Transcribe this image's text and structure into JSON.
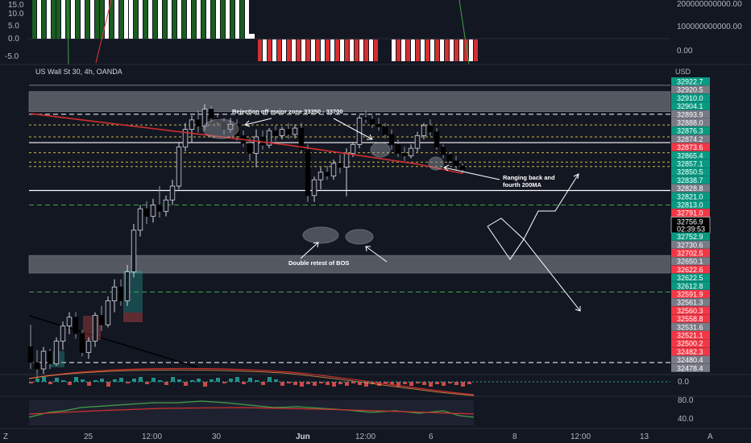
{
  "header": {
    "symbol": "US Wall St 30, 4h, OANDA",
    "currency": "USD"
  },
  "top_indicator": {
    "left_ticks": [
      "15.0",
      "10.0",
      "5.0",
      "0.0",
      "-5.0"
    ],
    "right_ticks": [
      "200000000000.00",
      "100000000000.00",
      "0.00"
    ]
  },
  "bottom_indicators": {
    "macd_tick": "0.0",
    "rsi_ticks": [
      "80.0",
      "40.0"
    ]
  },
  "annotations": {
    "rejection": "Rejection off major zone 33350 - 33700",
    "retest": "Double retest of BOS",
    "ranging_line1": "Ranging back and",
    "ranging_line2": "fourth 200MA"
  },
  "x_axis": {
    "ticks": [
      "Z",
      "25",
      "12:00",
      "30",
      "Jun",
      "12:00",
      "6",
      "8",
      "12:00",
      "13",
      "A"
    ]
  },
  "colors": {
    "background": "#131722",
    "up": "#26a69a",
    "down": "#ef5350",
    "ma200": "#d32f2f",
    "green_label": "#089981",
    "red_label": "#f23645",
    "gray_label": "#787b86"
  },
  "chart_data": {
    "type": "candlestick",
    "title": "US Wall St 30, 4h, OANDA",
    "ylabel": "USD",
    "ylim": [
      32470,
      32930
    ],
    "price_labels": [
      {
        "value": "32922.7",
        "color": "green"
      },
      {
        "value": "32920.5",
        "color": "gray"
      },
      {
        "value": "32910.0",
        "color": "green"
      },
      {
        "value": "32904.1",
        "color": "green"
      },
      {
        "value": "32893.9",
        "color": "gray"
      },
      {
        "value": "32888.0",
        "color": "gray"
      },
      {
        "value": "32876.3",
        "color": "green"
      },
      {
        "value": "32874.2",
        "color": "gray"
      },
      {
        "value": "32873.6",
        "color": "red"
      },
      {
        "value": "32865.4",
        "color": "green"
      },
      {
        "value": "32857.1",
        "color": "green"
      },
      {
        "value": "32850.5",
        "color": "green"
      },
      {
        "value": "32838.7",
        "color": "green"
      },
      {
        "value": "32828.8",
        "color": "gray"
      },
      {
        "value": "32821.0",
        "color": "green"
      },
      {
        "value": "32813.0",
        "color": "green"
      },
      {
        "value": "32791.0",
        "color": "red"
      },
      {
        "value": "32756.9",
        "color": "current",
        "sub": "02:39:53"
      },
      {
        "value": "32752.9",
        "color": "green"
      },
      {
        "value": "32730.6",
        "color": "gray"
      },
      {
        "value": "32702.5",
        "color": "red"
      },
      {
        "value": "32650.1",
        "color": "gray"
      },
      {
        "value": "32622.6",
        "color": "red"
      },
      {
        "value": "32622.5",
        "color": "green"
      },
      {
        "value": "32612.8",
        "color": "green"
      },
      {
        "value": "32591.9",
        "color": "red"
      },
      {
        "value": "32561.3",
        "color": "gray"
      },
      {
        "value": "32560.3",
        "color": "red"
      },
      {
        "value": "32558.8",
        "color": "red"
      },
      {
        "value": "32531.6",
        "color": "gray"
      },
      {
        "value": "32521.1",
        "color": "red"
      },
      {
        "value": "32500.2",
        "color": "red"
      },
      {
        "value": "32482.3",
        "color": "red"
      },
      {
        "value": "32480.4",
        "color": "gray"
      },
      {
        "value": "32478.4",
        "color": "gray"
      }
    ],
    "candles": [
      {
        "o": 32505,
        "h": 32540,
        "l": 32470,
        "c": 32480
      },
      {
        "o": 32480,
        "h": 32500,
        "l": 32455,
        "c": 32470
      },
      {
        "o": 32470,
        "h": 32505,
        "l": 32462,
        "c": 32498
      },
      {
        "o": 32498,
        "h": 32502,
        "l": 32470,
        "c": 32478
      },
      {
        "o": 32478,
        "h": 32520,
        "l": 32475,
        "c": 32514
      },
      {
        "o": 32514,
        "h": 32545,
        "l": 32500,
        "c": 32538
      },
      {
        "o": 32538,
        "h": 32560,
        "l": 32525,
        "c": 32552
      },
      {
        "o": 32552,
        "h": 32560,
        "l": 32518,
        "c": 32526
      },
      {
        "o": 32526,
        "h": 32532,
        "l": 32490,
        "c": 32496
      },
      {
        "o": 32496,
        "h": 32520,
        "l": 32486,
        "c": 32514
      },
      {
        "o": 32514,
        "h": 32560,
        "l": 32505,
        "c": 32555
      },
      {
        "o": 32555,
        "h": 32570,
        "l": 32530,
        "c": 32540
      },
      {
        "o": 32540,
        "h": 32585,
        "l": 32536,
        "c": 32578
      },
      {
        "o": 32578,
        "h": 32612,
        "l": 32560,
        "c": 32600
      },
      {
        "o": 32600,
        "h": 32612,
        "l": 32570,
        "c": 32578
      },
      {
        "o": 32578,
        "h": 32635,
        "l": 32570,
        "c": 32624
      },
      {
        "o": 32624,
        "h": 32700,
        "l": 32615,
        "c": 32690
      },
      {
        "o": 32690,
        "h": 32730,
        "l": 32680,
        "c": 32724
      },
      {
        "o": 32724,
        "h": 32736,
        "l": 32700,
        "c": 32712
      },
      {
        "o": 32712,
        "h": 32740,
        "l": 32702,
        "c": 32730
      },
      {
        "o": 32730,
        "h": 32760,
        "l": 32710,
        "c": 32720
      },
      {
        "o": 32720,
        "h": 32745,
        "l": 32712,
        "c": 32738
      },
      {
        "o": 32738,
        "h": 32770,
        "l": 32730,
        "c": 32760
      },
      {
        "o": 32760,
        "h": 32830,
        "l": 32755,
        "c": 32822
      },
      {
        "o": 32822,
        "h": 32860,
        "l": 32815,
        "c": 32850
      },
      {
        "o": 32850,
        "h": 32872,
        "l": 32830,
        "c": 32865
      },
      {
        "o": 32865,
        "h": 32880,
        "l": 32845,
        "c": 32855
      },
      {
        "o": 32855,
        "h": 32890,
        "l": 32848,
        "c": 32882
      },
      {
        "o": 32882,
        "h": 32888,
        "l": 32862,
        "c": 32868
      },
      {
        "o": 32868,
        "h": 32874,
        "l": 32858,
        "c": 32862
      },
      {
        "o": 32862,
        "h": 32868,
        "l": 32842,
        "c": 32850
      },
      {
        "o": 32850,
        "h": 32868,
        "l": 32845,
        "c": 32858
      },
      {
        "o": 32858,
        "h": 32866,
        "l": 32832,
        "c": 32840
      },
      {
        "o": 32840,
        "h": 32848,
        "l": 32822,
        "c": 32828
      },
      {
        "o": 32828,
        "h": 32836,
        "l": 32800,
        "c": 32812
      },
      {
        "o": 32812,
        "h": 32850,
        "l": 32790,
        "c": 32838
      },
      {
        "o": 32838,
        "h": 32848,
        "l": 32818,
        "c": 32825
      },
      {
        "o": 32825,
        "h": 32852,
        "l": 32820,
        "c": 32848
      },
      {
        "o": 32848,
        "h": 32856,
        "l": 32832,
        "c": 32840
      },
      {
        "o": 32840,
        "h": 32854,
        "l": 32834,
        "c": 32850
      },
      {
        "o": 32850,
        "h": 32860,
        "l": 32835,
        "c": 32842
      },
      {
        "o": 32842,
        "h": 32858,
        "l": 32836,
        "c": 32852
      },
      {
        "o": 32852,
        "h": 32860,
        "l": 32812,
        "c": 32818
      },
      {
        "o": 32818,
        "h": 32826,
        "l": 32735,
        "c": 32745
      },
      {
        "o": 32745,
        "h": 32775,
        "l": 32735,
        "c": 32770
      },
      {
        "o": 32770,
        "h": 32790,
        "l": 32755,
        "c": 32782
      },
      {
        "o": 32782,
        "h": 32792,
        "l": 32770,
        "c": 32776
      },
      {
        "o": 32776,
        "h": 32802,
        "l": 32770,
        "c": 32796
      },
      {
        "o": 32796,
        "h": 32810,
        "l": 32780,
        "c": 32790
      },
      {
        "o": 32790,
        "h": 32820,
        "l": 32744,
        "c": 32812
      },
      {
        "o": 32812,
        "h": 32830,
        "l": 32806,
        "c": 32826
      },
      {
        "o": 32826,
        "h": 32872,
        "l": 32820,
        "c": 32868
      },
      {
        "o": 32868,
        "h": 32880,
        "l": 32860,
        "c": 32866
      },
      {
        "o": 32866,
        "h": 32872,
        "l": 32852,
        "c": 32858
      },
      {
        "o": 32858,
        "h": 32868,
        "l": 32848,
        "c": 32854
      },
      {
        "o": 32854,
        "h": 32860,
        "l": 32836,
        "c": 32842
      },
      {
        "o": 32842,
        "h": 32850,
        "l": 32818,
        "c": 32826
      },
      {
        "o": 32826,
        "h": 32834,
        "l": 32806,
        "c": 32812
      },
      {
        "o": 32812,
        "h": 32822,
        "l": 32800,
        "c": 32808
      },
      {
        "o": 32808,
        "h": 32826,
        "l": 32804,
        "c": 32820
      },
      {
        "o": 32820,
        "h": 32846,
        "l": 32814,
        "c": 32840
      },
      {
        "o": 32840,
        "h": 32860,
        "l": 32834,
        "c": 32856
      },
      {
        "o": 32856,
        "h": 32866,
        "l": 32840,
        "c": 32846
      },
      {
        "o": 32846,
        "h": 32852,
        "l": 32818,
        "c": 32822
      },
      {
        "o": 32822,
        "h": 32826,
        "l": 32804,
        "c": 32810
      },
      {
        "o": 32810,
        "h": 32814,
        "l": 32796,
        "c": 32800
      },
      {
        "o": 32800,
        "h": 32808,
        "l": 32786,
        "c": 32792
      },
      {
        "o": 32792,
        "h": 32796,
        "l": 32780,
        "c": 32786
      }
    ],
    "ma200": [
      [
        0,
        32875
      ],
      [
        20,
        32850
      ],
      [
        40,
        32825
      ],
      [
        60,
        32795
      ],
      [
        67,
        32780
      ]
    ],
    "zones": [
      {
        "top": 32910,
        "bottom": 32878
      },
      {
        "top": 32650,
        "bottom": 32622
      }
    ],
    "horizontal_levels": [
      {
        "value": 32920,
        "style": "solid-gray"
      },
      {
        "value": 32874,
        "style": "dashed-white"
      },
      {
        "value": 32857,
        "style": "dashed-yellow"
      },
      {
        "value": 32838,
        "style": "dashed-yellow"
      },
      {
        "value": 32829,
        "style": "solid-white"
      },
      {
        "value": 32813,
        "style": "dashed-yellow"
      },
      {
        "value": 32798,
        "style": "dashed-yellow"
      },
      {
        "value": 32791,
        "style": "dashed-yellow"
      },
      {
        "value": 32753,
        "style": "solid-white"
      },
      {
        "value": 32730,
        "style": "dashed-green"
      },
      {
        "value": 32592,
        "style": "dashed-green"
      },
      {
        "value": 32480,
        "style": "dashed-white"
      }
    ]
  }
}
